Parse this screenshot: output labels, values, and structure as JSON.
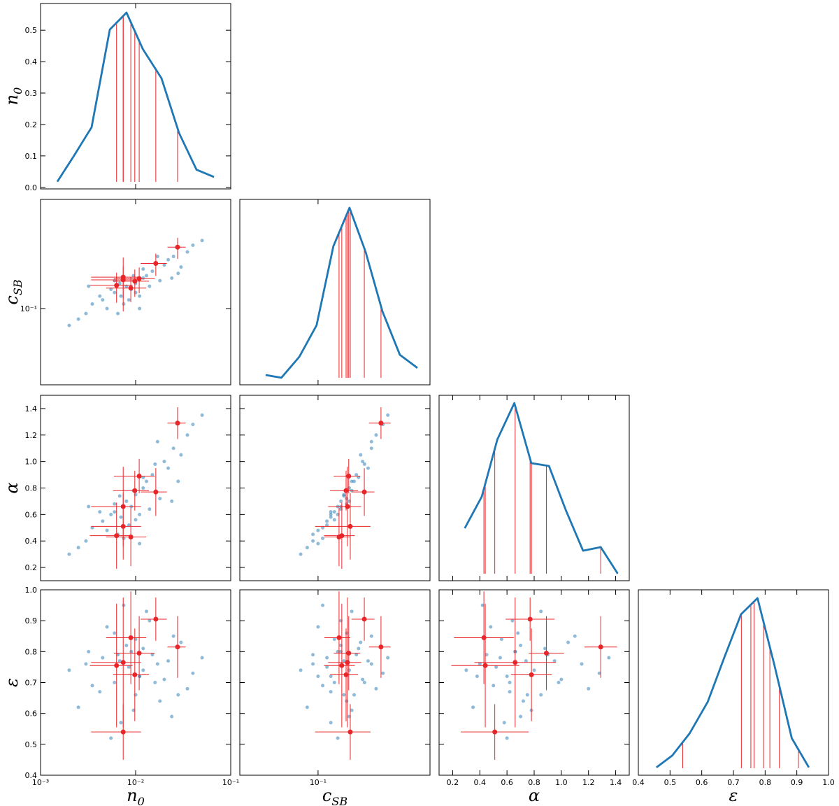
{
  "chart_data": {
    "type": "corner",
    "point_color": "#1f77b4",
    "line_color": "#1f77b4",
    "highlight_color": "#e8262a",
    "variables": [
      {
        "key": "n0",
        "label": {
          "main": "n",
          "sub": "0"
        },
        "log": true,
        "lim": [
          0.001,
          0.1
        ],
        "ticks": [
          {
            "value": 0.001,
            "label": "10⁻³"
          },
          {
            "value": 0.01,
            "label": "10⁻²"
          },
          {
            "value": 0.1,
            "label": "10⁻¹"
          }
        ],
        "density": {
          "x": [
            0.0015,
            0.00222,
            0.00344,
            0.00535,
            0.00802,
            0.0119,
            0.0187,
            0.0286,
            0.0437,
            0.0667
          ],
          "y": [
            0.018,
            0.098,
            0.191,
            0.502,
            0.556,
            0.44,
            0.347,
            0.173,
            0.056,
            0.033
          ],
          "ylim": [
            -0.005,
            0.585
          ],
          "yticks": [
            {
              "value": 0,
              "label": "0.0"
            },
            0.1,
            0.2,
            0.3,
            0.4,
            0.5
          ]
        }
      },
      {
        "key": "cSB",
        "label": {
          "main": "c",
          "sub": "SB"
        },
        "log": true,
        "lim": [
          0.02,
          1
        ],
        "ticks": [
          {
            "value": 0.1,
            "label": "10⁻¹"
          }
        ],
        "density": {
          "x": [
            0.034,
            0.047,
            0.068,
            0.097,
            0.137,
            0.191,
            0.266,
            0.376,
            0.538,
            0.772
          ],
          "y": [
            0.053,
            0.038,
            0.151,
            0.321,
            0.747,
            0.955,
            0.717,
            0.396,
            0.162,
            0.091
          ],
          "ylim": [
            0,
            1
          ]
        }
      },
      {
        "key": "alpha",
        "label": {
          "main": "α"
        },
        "log": false,
        "lim": [
          0.1,
          1.5
        ],
        "ticks": [
          0.2,
          0.4,
          0.6,
          0.8,
          {
            "value": 1.0,
            "label": "1.0"
          },
          1.2,
          1.4
        ],
        "density": {
          "x": [
            0.289,
            0.414,
            0.529,
            0.654,
            0.779,
            0.909,
            1.035,
            1.16,
            1.29,
            1.415
          ],
          "y": [
            0.283,
            0.453,
            0.762,
            0.958,
            0.634,
            0.619,
            0.377,
            0.162,
            0.181,
            0.038
          ],
          "ylim": [
            0,
            1
          ]
        }
      },
      {
        "key": "eps",
        "label": {
          "main": "ε"
        },
        "log": false,
        "lim": [
          0.4,
          1.0
        ],
        "ticks": [
          0.4,
          0.5,
          0.6,
          0.7,
          0.8,
          0.9,
          {
            "value": 1.0,
            "label": "1.0"
          }
        ],
        "density": {
          "x": [
            0.457,
            0.507,
            0.562,
            0.619,
            0.671,
            0.724,
            0.776,
            0.829,
            0.884,
            0.938
          ],
          "y": [
            0.042,
            0.106,
            0.226,
            0.396,
            0.634,
            0.868,
            0.955,
            0.596,
            0.2,
            0.042
          ],
          "ylim": [
            0,
            1
          ]
        }
      }
    ],
    "sample": {
      "n0": [
        0.0045,
        0.006,
        0.008,
        0.01,
        0.012,
        0.015,
        0.02,
        0.025,
        0.035,
        0.003,
        0.0025,
        0.005,
        0.007,
        0.009,
        0.011,
        0.013,
        0.018,
        0.022,
        0.03,
        0.04,
        0.0035,
        0.006,
        0.0085,
        0.0095,
        0.014,
        0.016,
        0.0065,
        0.0055,
        0.012,
        0.028,
        0.002,
        0.0075,
        0.01,
        0.017,
        0.05,
        0.0042,
        0.011,
        0.0068,
        0.024,
        0.0032
      ],
      "cSB": [
        0.12,
        0.14,
        0.16,
        0.17,
        0.19,
        0.22,
        0.25,
        0.3,
        0.33,
        0.09,
        0.08,
        0.1,
        0.13,
        0.15,
        0.13,
        0.2,
        0.18,
        0.28,
        0.24,
        0.38,
        0.11,
        0.18,
        0.12,
        0.2,
        0.16,
        0.26,
        0.09,
        0.15,
        0.23,
        0.21,
        0.07,
        0.11,
        0.14,
        0.3,
        0.42,
        0.13,
        0.1,
        0.17,
        0.19,
        0.16
      ],
      "alpha": [
        0.55,
        0.62,
        0.7,
        0.75,
        0.8,
        0.9,
        1.0,
        1.1,
        1.2,
        0.4,
        0.35,
        0.48,
        0.58,
        0.66,
        0.6,
        0.85,
        0.72,
        0.95,
        1.05,
        1.28,
        0.5,
        0.68,
        0.52,
        0.78,
        0.64,
        0.98,
        0.45,
        0.6,
        0.88,
        0.85,
        0.3,
        0.42,
        0.56,
        1.15,
        1.35,
        0.62,
        0.38,
        0.74,
        0.7,
        0.66
      ],
      "eps": [
        0.78,
        0.7,
        0.82,
        0.66,
        0.74,
        0.79,
        0.71,
        0.85,
        0.68,
        0.76,
        0.62,
        0.88,
        0.57,
        0.8,
        0.72,
        0.93,
        0.64,
        0.77,
        0.83,
        0.73,
        0.69,
        0.86,
        0.75,
        0.61,
        0.9,
        0.7,
        0.79,
        0.52,
        0.81,
        0.66,
        0.74,
        0.95,
        0.84,
        0.76,
        0.78,
        0.67,
        0.72,
        0.77,
        0.59,
        0.8
      ]
    },
    "highlighted": {
      "n0": {
        "values": [
          0.0063,
          0.0074,
          0.0089,
          0.0109,
          0.0098,
          0.0163,
          0.0276,
          0.0074
        ],
        "errors": [
          0.003,
          0.004,
          0.004,
          0.005,
          0.004,
          0.005,
          0.006,
          0.004
        ]
      },
      "cSB": {
        "values": [
          0.163,
          0.183,
          0.154,
          0.188,
          0.178,
          0.259,
          0.365,
          0.194
        ],
        "errors": [
          0.05,
          0.06,
          0.04,
          0.05,
          0.05,
          0.06,
          0.08,
          0.1
        ]
      },
      "alpha": {
        "values": [
          0.44,
          0.66,
          0.43,
          0.89,
          0.78,
          0.77,
          1.29,
          0.51
        ],
        "errors": [
          0.25,
          0.3,
          0.22,
          0.13,
          0.15,
          0.18,
          0.12,
          0.25
        ]
      },
      "eps": {
        "values": [
          0.755,
          0.765,
          0.845,
          0.795,
          0.725,
          0.905,
          0.815,
          0.54
        ],
        "errors": [
          0.2,
          0.21,
          0.15,
          0.12,
          0.15,
          0.07,
          0.1,
          0.09
        ]
      }
    }
  }
}
